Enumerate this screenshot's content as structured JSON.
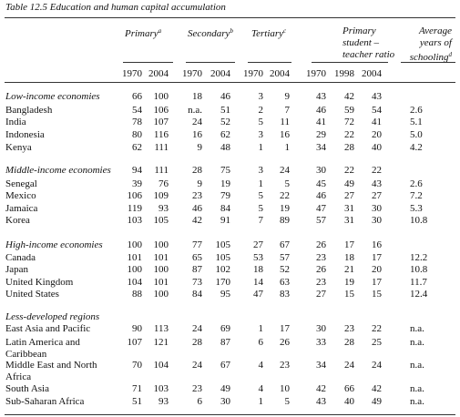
{
  "title": "Table 12.5 Education and human capital accumulation",
  "columns": [
    {
      "label_lines": [
        "Primary"
      ],
      "note": "a",
      "years": [
        "1970",
        "2004"
      ]
    },
    {
      "label_lines": [
        "Secondary"
      ],
      "note": "b",
      "years": [
        "1970",
        "2004"
      ]
    },
    {
      "label_lines": [
        "Tertiary"
      ],
      "note": "c",
      "years": [
        "1970",
        "2004"
      ]
    },
    {
      "label_lines": [
        "Primary",
        "student –",
        "teacher ratio"
      ],
      "years": [
        "1970",
        "1998",
        "2004"
      ]
    },
    {
      "label_lines": [
        "Average",
        "years of",
        "schooling"
      ],
      "note": "d"
    }
  ],
  "groups": [
    {
      "name": "Low-income economies",
      "values": [
        "66",
        "100",
        "18",
        "46",
        "3",
        "9",
        "43",
        "42",
        "43"
      ],
      "rows": [
        {
          "label": "Bangladesh",
          "values": [
            "54",
            "106",
            "n.a.",
            "51",
            "2",
            "7",
            "46",
            "59",
            "54",
            "2.6"
          ]
        },
        {
          "label": "India",
          "values": [
            "78",
            "107",
            "24",
            "52",
            "5",
            "11",
            "41",
            "72",
            "41",
            "5.1"
          ]
        },
        {
          "label": "Indonesia",
          "values": [
            "80",
            "116",
            "16",
            "62",
            "3",
            "16",
            "29",
            "22",
            "20",
            "5.0"
          ]
        },
        {
          "label": "Kenya",
          "values": [
            "62",
            "111",
            "9",
            "48",
            "1",
            "1",
            "34",
            "28",
            "40",
            "4.2"
          ]
        }
      ]
    },
    {
      "name": "Middle-income economies",
      "values": [
        "94",
        "111",
        "28",
        "75",
        "3",
        "24",
        "30",
        "22",
        "22"
      ],
      "rows": [
        {
          "label": "Senegal",
          "values": [
            "39",
            "76",
            "9",
            "19",
            "1",
            "5",
            "45",
            "49",
            "43",
            "2.6"
          ]
        },
        {
          "label": "Mexico",
          "values": [
            "106",
            "109",
            "23",
            "79",
            "5",
            "22",
            "46",
            "27",
            "27",
            "7.2"
          ]
        },
        {
          "label": "Jamaica",
          "values": [
            "119",
            "93",
            "46",
            "84",
            "5",
            "19",
            "47",
            "31",
            "30",
            "5.3"
          ]
        },
        {
          "label": "Korea",
          "values": [
            "103",
            "105",
            "42",
            "91",
            "7",
            "89",
            "57",
            "31",
            "30",
            "10.8"
          ]
        }
      ]
    },
    {
      "name": "High-income economies",
      "values": [
        "100",
        "100",
        "77",
        "105",
        "27",
        "67",
        "26",
        "17",
        "16"
      ],
      "rows": [
        {
          "label": "Canada",
          "values": [
            "101",
            "101",
            "65",
            "105",
            "53",
            "57",
            "23",
            "18",
            "17",
            "12.2"
          ]
        },
        {
          "label": "Japan",
          "values": [
            "100",
            "100",
            "87",
            "102",
            "18",
            "52",
            "26",
            "21",
            "20",
            "10.8"
          ]
        },
        {
          "label": "United Kingdom",
          "values": [
            "104",
            "101",
            "73",
            "170",
            "14",
            "63",
            "23",
            "19",
            "17",
            "11.7"
          ]
        },
        {
          "label": "United States",
          "values": [
            "88",
            "100",
            "84",
            "95",
            "47",
            "83",
            "27",
            "15",
            "15",
            "12.4"
          ]
        }
      ]
    },
    {
      "name": "Less-developed regions",
      "rows": [
        {
          "label": "East Asia and Pacific",
          "values": [
            "90",
            "113",
            "24",
            "69",
            "1",
            "17",
            "30",
            "23",
            "22",
            "n.a."
          ]
        },
        {
          "label": "Latin America and Caribbean",
          "values": [
            "107",
            "121",
            "28",
            "87",
            "6",
            "26",
            "33",
            "28",
            "25",
            "n.a."
          ]
        },
        {
          "label": "Middle East and North Africa",
          "values": [
            "70",
            "104",
            "24",
            "67",
            "4",
            "23",
            "34",
            "24",
            "24",
            "n.a."
          ]
        },
        {
          "label": "South Asia",
          "values": [
            "71",
            "103",
            "23",
            "49",
            "4",
            "10",
            "42",
            "66",
            "42",
            "n.a."
          ]
        },
        {
          "label": "Sub-Saharan Africa",
          "values": [
            "51",
            "93",
            "6",
            "30",
            "1",
            "5",
            "43",
            "40",
            "49",
            "n.a."
          ]
        }
      ]
    }
  ]
}
